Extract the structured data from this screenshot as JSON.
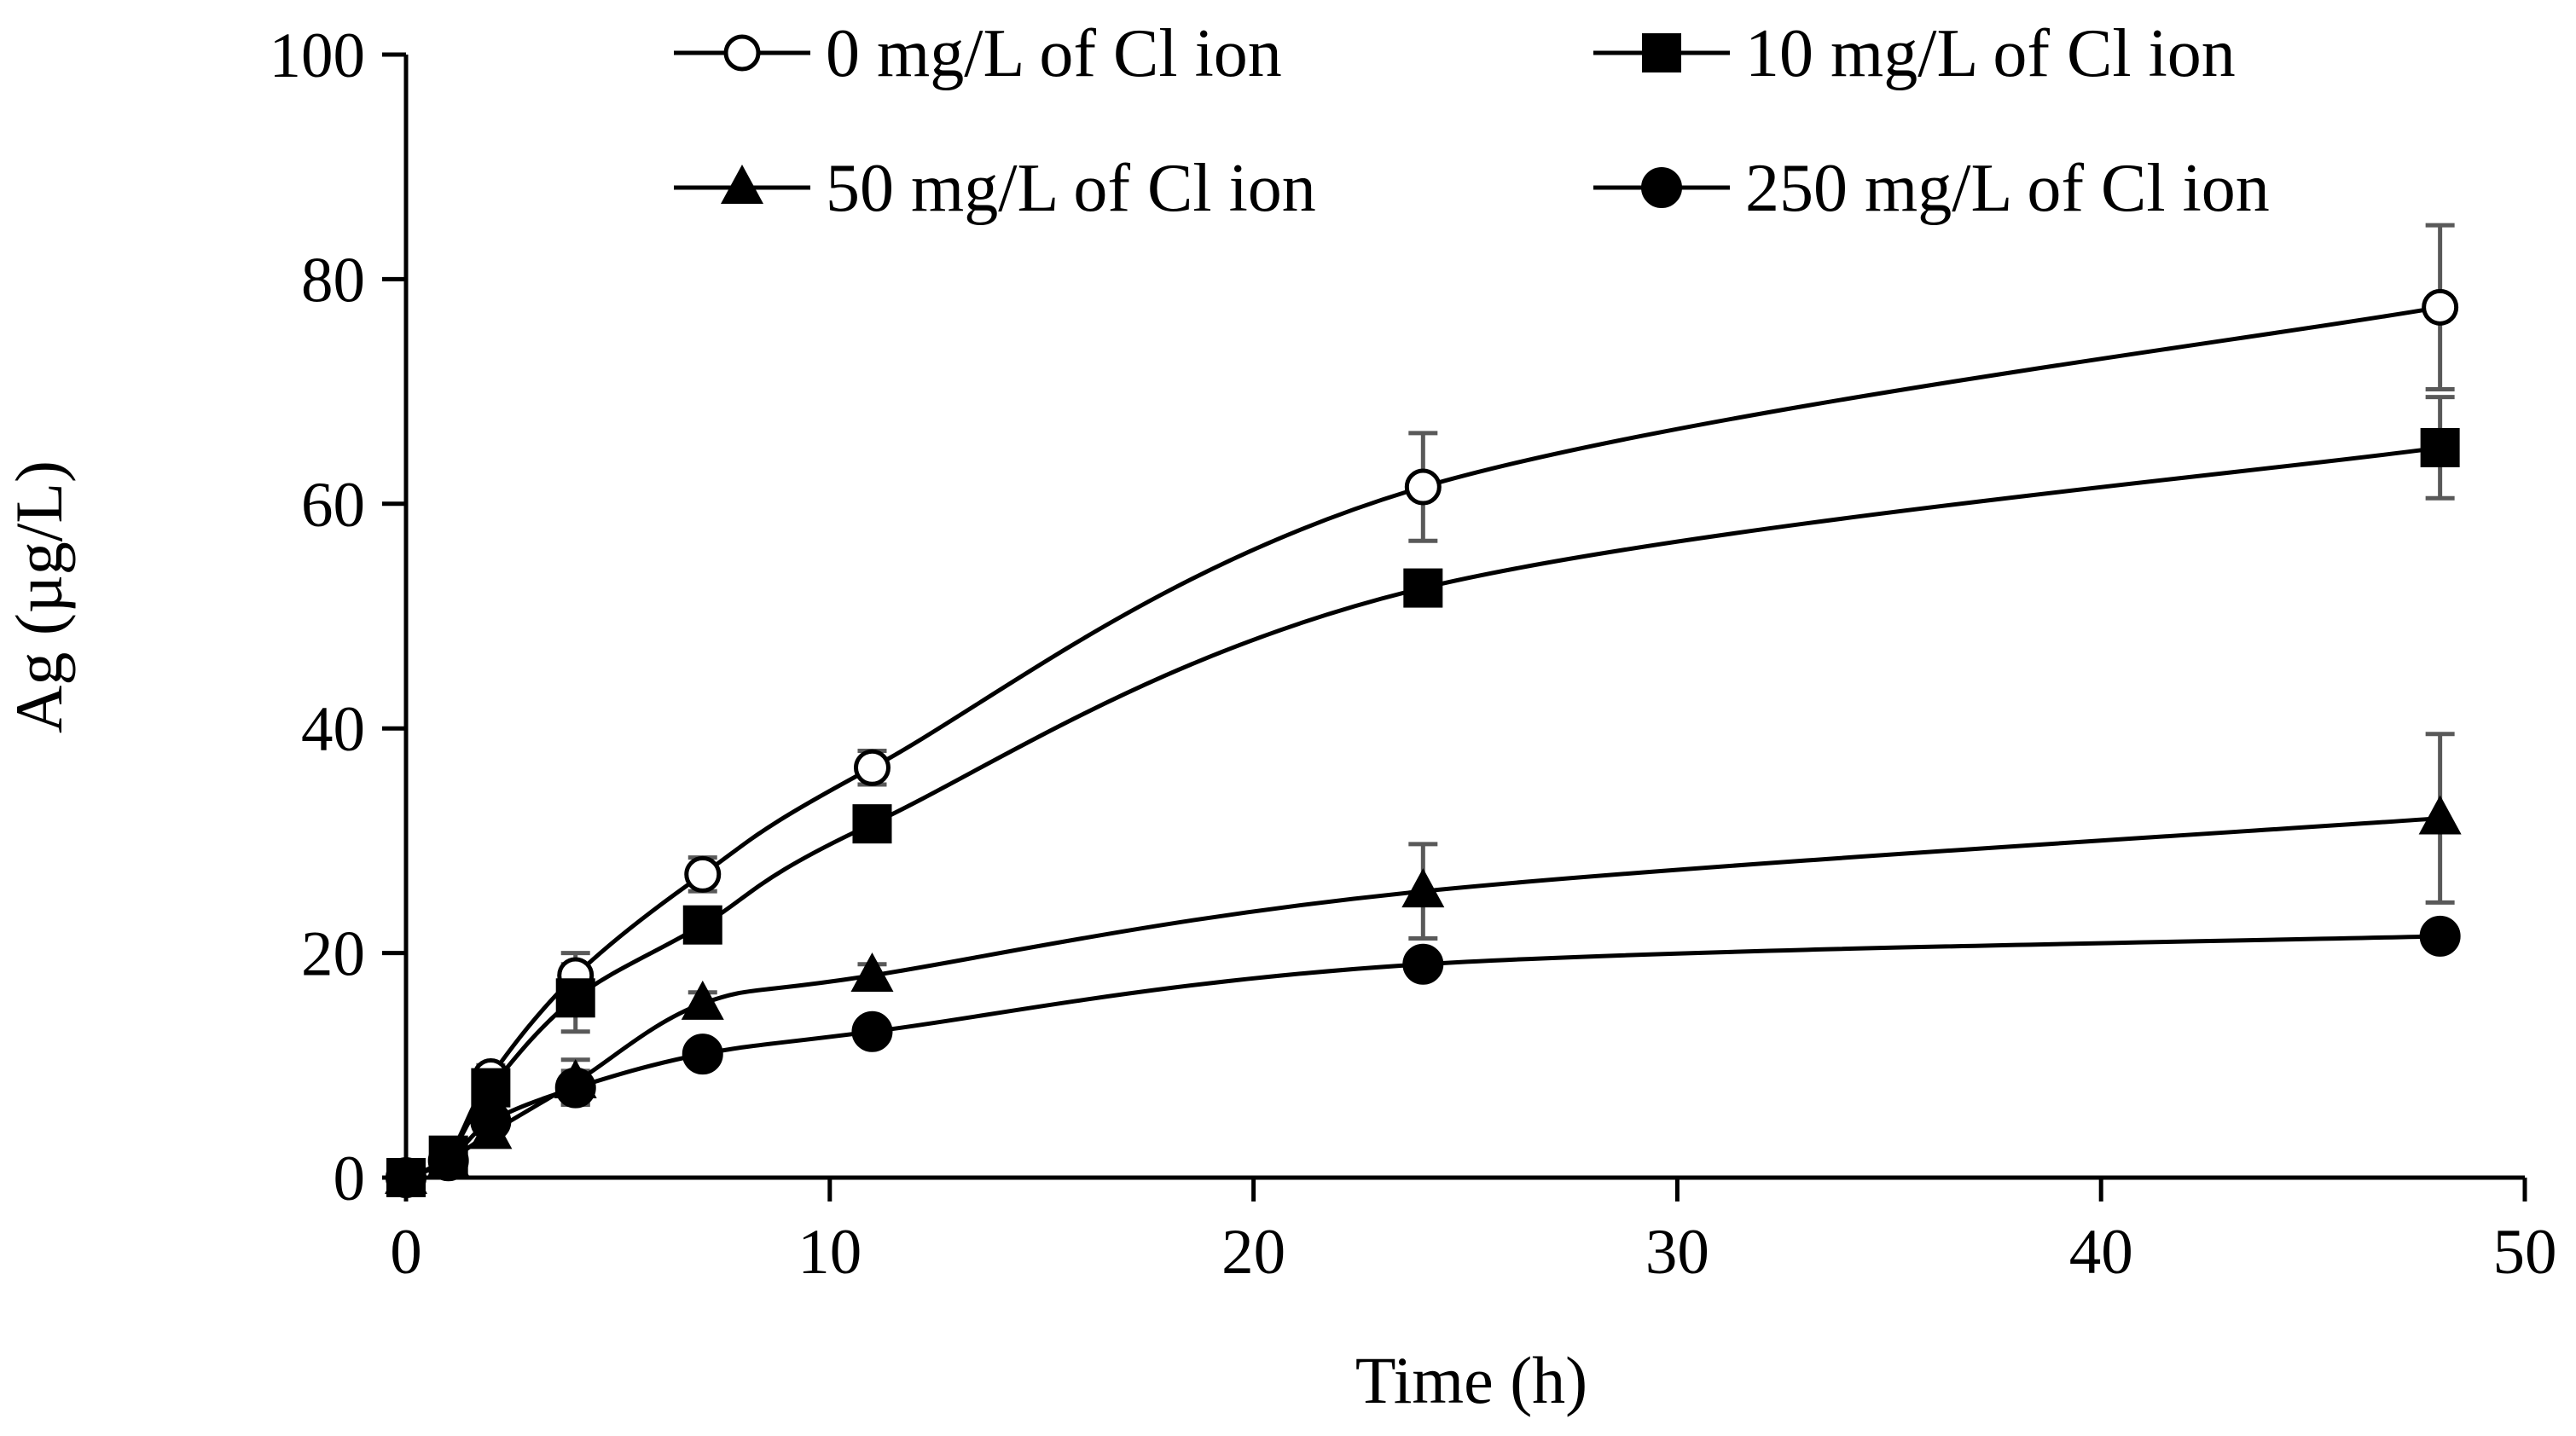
{
  "chart_data": {
    "type": "line",
    "title": "",
    "xlabel": "Time (h)",
    "ylabel": "Ag (µg/L)",
    "xlim": [
      0,
      50
    ],
    "ylim": [
      0,
      100
    ],
    "x_ticks": [
      0,
      10,
      20,
      30,
      40,
      50
    ],
    "y_ticks": [
      0,
      20,
      40,
      60,
      80,
      100
    ],
    "x_tick_labels": [
      "0",
      "10",
      "20",
      "30",
      "40",
      "50"
    ],
    "y_tick_labels": [
      "0",
      "20",
      "40",
      "60",
      "80",
      "100"
    ],
    "grid": false,
    "legend_position": "top",
    "x": [
      0,
      1,
      2,
      4,
      7,
      11,
      24,
      48
    ],
    "series": [
      {
        "name": "0 mg/L of Cl ion",
        "marker": "circle-open",
        "values": [
          0,
          2,
          9,
          18,
          27,
          36.5,
          61.5,
          77.5
        ],
        "errors": [
          0,
          0.5,
          1,
          2,
          1.5,
          1.5,
          4.8,
          7.3
        ]
      },
      {
        "name": "10 mg/L of Cl ion",
        "marker": "square",
        "values": [
          0,
          2,
          8,
          16,
          22.5,
          31.5,
          52.5,
          65
        ],
        "errors": [
          0,
          0.5,
          1,
          3,
          1.5,
          1,
          1,
          4.5
        ]
      },
      {
        "name": "50 mg/L of Cl ion",
        "marker": "triangle",
        "values": [
          0,
          1.5,
          4,
          8.5,
          15.5,
          18,
          25.5,
          32
        ],
        "errors": [
          0,
          0.5,
          0.5,
          2,
          1,
          1,
          4.2,
          7.5
        ]
      },
      {
        "name": "250 mg/L of Cl ion",
        "marker": "circle-filled",
        "values": [
          0,
          1.5,
          5,
          8,
          11,
          13,
          19,
          21.5
        ],
        "errors": [
          0,
          0.5,
          0.5,
          1.5,
          1,
          1,
          1,
          1
        ]
      }
    ]
  },
  "colors": {
    "line": "#000000",
    "error_bar": "#595959",
    "open_marker_fill": "#ffffff"
  }
}
